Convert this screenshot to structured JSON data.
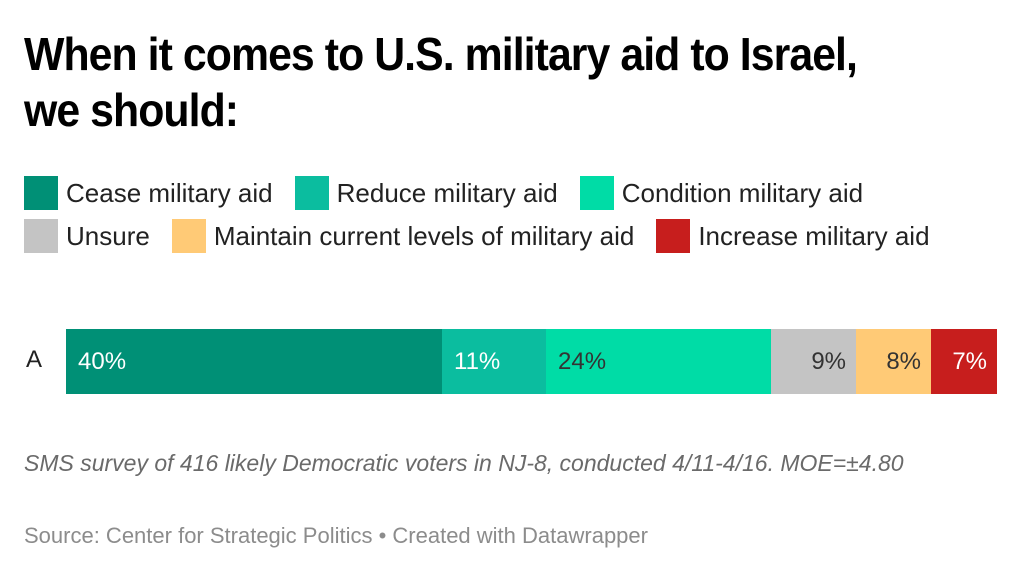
{
  "chart_data": {
    "type": "bar",
    "orientation": "horizontal-stacked",
    "title": "When it comes to U.S. military aid to Israel, we should:",
    "categories": [
      "A"
    ],
    "series": [
      {
        "name": "Cease military aid",
        "values": [
          40
        ],
        "label": "40%",
        "color": "#009076",
        "label_color": "#ffffff",
        "label_align": "left"
      },
      {
        "name": "Reduce military aid",
        "values": [
          11
        ],
        "label": "11%",
        "color": "#0bbd9f",
        "label_color": "#ffffff",
        "label_align": "left"
      },
      {
        "name": "Condition military aid",
        "values": [
          24
        ],
        "label": "24%",
        "color": "#00dca6",
        "label_color": "#333333",
        "label_align": "left"
      },
      {
        "name": "Unsure",
        "values": [
          9
        ],
        "label": "9%",
        "color": "#c4c4c4",
        "label_color": "#333333",
        "label_align": "right"
      },
      {
        "name": "Maintain current levels of military aid",
        "values": [
          8
        ],
        "label": "8%",
        "color": "#ffca76",
        "label_color": "#333333",
        "label_align": "right"
      },
      {
        "name": "Increase military aid",
        "values": [
          7
        ],
        "label": "7%",
        "color": "#c71e1d",
        "label_color": "#ffffff",
        "label_align": "right"
      }
    ],
    "xlim": [
      0,
      99
    ],
    "unit": "%",
    "legend_position": "top",
    "grid": false,
    "notes": "SMS survey of 416 likely Democratic voters in NJ-8, conducted 4/11-4/16. MOE=±4.80",
    "source": "Source: Center for Strategic Politics • Created with Datawrapper"
  }
}
